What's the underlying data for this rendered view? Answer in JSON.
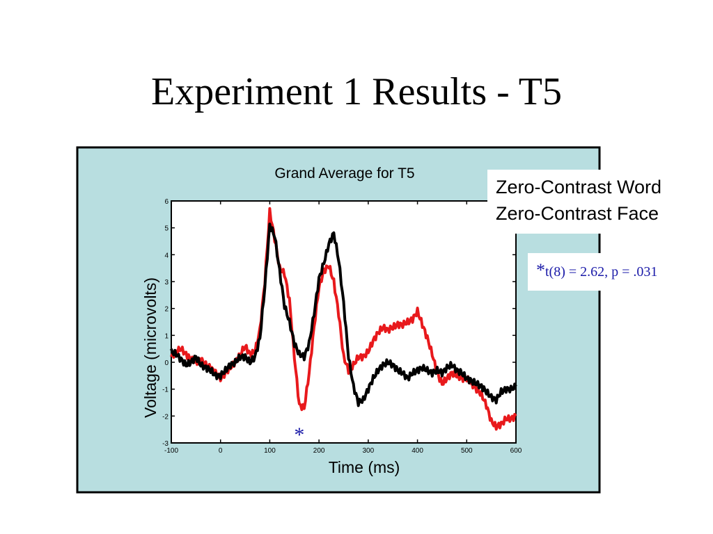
{
  "slide": {
    "title": "Experiment 1 Results - T5"
  },
  "colors": {
    "panel_bg": "#b8dee0",
    "series_red": "#e8191c",
    "series_black": "#000000",
    "annotation_blue": "#1a1aa8"
  },
  "chart_data": {
    "type": "line",
    "title": "Grand Average for T5",
    "xlabel": "Time (ms)",
    "ylabel": "Voltage (microvolts)",
    "xlim": [
      -100,
      600
    ],
    "ylim": [
      -3,
      6
    ],
    "xticks": [
      "-100",
      "0",
      "100",
      "200",
      "300",
      "400",
      "500",
      "600"
    ],
    "yticks": [
      "-3",
      "-2",
      "-1",
      "0",
      "1",
      "2",
      "3",
      "4",
      "5",
      "6"
    ],
    "grid": false,
    "legend_placement": "top-right outside",
    "legend": [
      "Zero-Contrast Word",
      "Zero-Contrast Face"
    ],
    "series": [
      {
        "name": "Zero-Contrast Word",
        "color": "#e8191c",
        "x": [
          -100,
          -90,
          -80,
          -70,
          -60,
          -50,
          -40,
          -30,
          -20,
          -10,
          0,
          10,
          20,
          30,
          40,
          50,
          60,
          70,
          80,
          90,
          100,
          110,
          120,
          130,
          140,
          150,
          160,
          170,
          180,
          190,
          200,
          210,
          220,
          230,
          240,
          250,
          260,
          270,
          280,
          290,
          300,
          310,
          320,
          330,
          340,
          350,
          360,
          370,
          380,
          390,
          400,
          410,
          420,
          430,
          440,
          450,
          460,
          470,
          480,
          490,
          500,
          510,
          520,
          530,
          540,
          550,
          560,
          570,
          580,
          590,
          600
        ],
        "y": [
          0.2,
          0.4,
          0.5,
          0.3,
          0.1,
          0.0,
          0.1,
          -0.1,
          -0.2,
          -0.4,
          -0.6,
          -0.4,
          -0.2,
          0.0,
          0.3,
          0.6,
          0.3,
          0.4,
          1.2,
          3.0,
          5.6,
          4.6,
          3.5,
          3.3,
          2.3,
          0.2,
          -1.6,
          -1.7,
          -0.4,
          1.3,
          2.8,
          3.4,
          3.6,
          3.0,
          1.8,
          0.2,
          -0.3,
          -0.1,
          0.2,
          0.2,
          0.4,
          0.8,
          1.1,
          1.3,
          1.2,
          1.3,
          1.4,
          1.4,
          1.5,
          1.6,
          1.9,
          1.4,
          0.9,
          0.3,
          -0.4,
          -0.8,
          -0.6,
          -0.4,
          -0.5,
          -0.6,
          -0.6,
          -0.8,
          -1.0,
          -1.2,
          -1.6,
          -2.2,
          -2.4,
          -2.3,
          -2.1,
          -2.1,
          -2.0
        ]
      },
      {
        "name": "Zero-Contrast Face",
        "color": "#000000",
        "x": [
          -100,
          -90,
          -80,
          -70,
          -60,
          -50,
          -40,
          -30,
          -20,
          -10,
          0,
          10,
          20,
          30,
          40,
          50,
          60,
          70,
          80,
          90,
          100,
          110,
          120,
          130,
          140,
          150,
          160,
          170,
          180,
          190,
          200,
          210,
          220,
          230,
          240,
          250,
          260,
          270,
          280,
          290,
          300,
          310,
          320,
          330,
          340,
          350,
          360,
          370,
          380,
          390,
          400,
          410,
          420,
          430,
          440,
          450,
          460,
          470,
          480,
          490,
          500,
          510,
          520,
          530,
          540,
          550,
          560,
          570,
          580,
          590,
          600
        ],
        "y": [
          0.4,
          0.3,
          0.1,
          -0.1,
          0.0,
          0.2,
          -0.1,
          -0.2,
          -0.3,
          -0.5,
          -0.5,
          -0.3,
          -0.1,
          0.0,
          0.2,
          0.2,
          0.0,
          0.2,
          0.9,
          2.8,
          5.1,
          4.7,
          3.4,
          2.1,
          1.5,
          0.7,
          0.3,
          0.2,
          0.7,
          1.8,
          3.1,
          3.7,
          4.4,
          4.8,
          3.8,
          2.2,
          0.2,
          -0.9,
          -1.5,
          -1.4,
          -1.0,
          -0.6,
          -0.3,
          -0.1,
          0.0,
          -0.1,
          -0.3,
          -0.4,
          -0.6,
          -0.4,
          -0.3,
          -0.2,
          -0.3,
          -0.4,
          -0.3,
          -0.4,
          -0.2,
          -0.1,
          -0.3,
          -0.4,
          -0.6,
          -0.7,
          -0.8,
          -0.9,
          -1.1,
          -1.3,
          -1.4,
          -1.1,
          -1.0,
          -1.0,
          -0.9
        ]
      }
    ],
    "annotations": [
      {
        "text": "*",
        "x": 160,
        "color": "#1a1aa8"
      }
    ],
    "stat_star": "*",
    "stat_text": "t(8) = 2.62, p = .031"
  }
}
